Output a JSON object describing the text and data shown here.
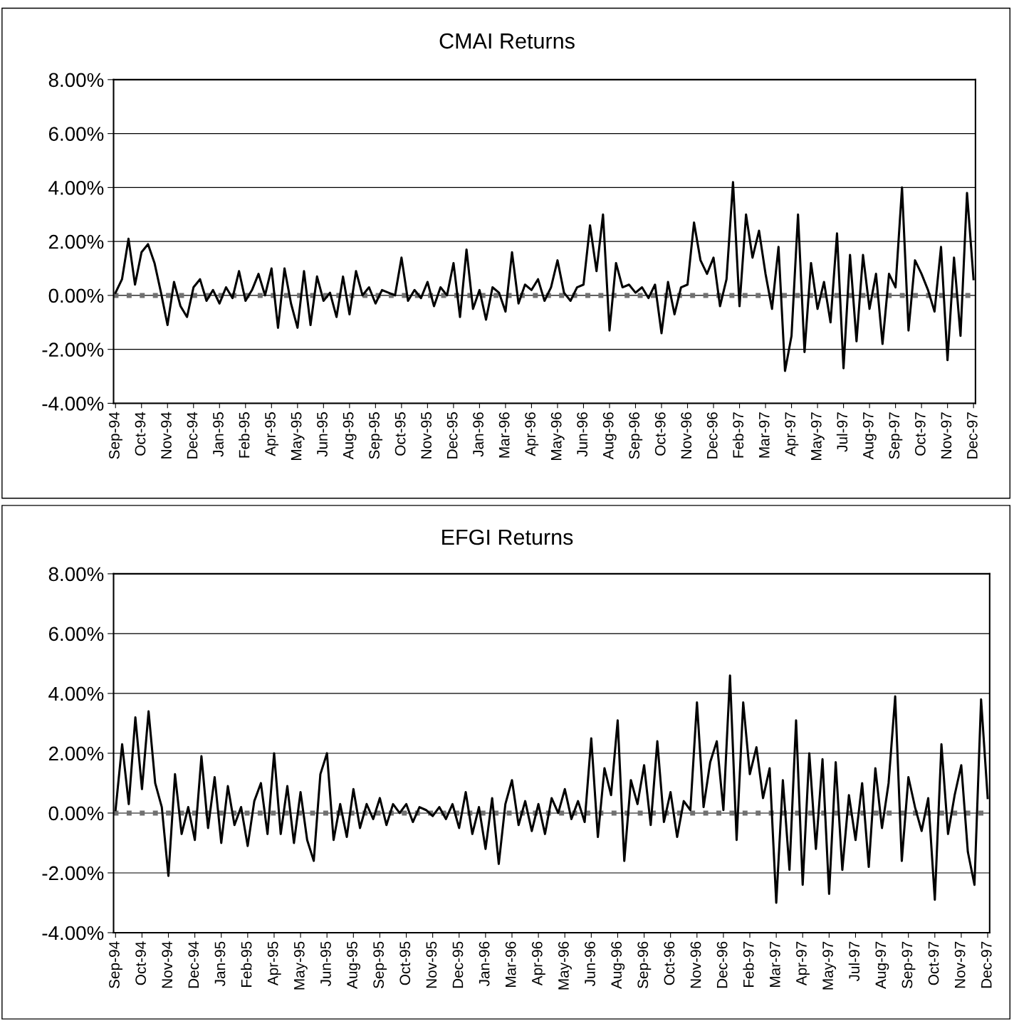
{
  "chart_data": [
    {
      "type": "line",
      "title": "CMAI Returns",
      "grid": "y",
      "categories": [
        "Sep-94",
        null,
        null,
        null,
        "Oct-94",
        null,
        null,
        null,
        "Nov-94",
        null,
        null,
        null,
        "Dec-94",
        null,
        null,
        null,
        "Jan-95",
        null,
        null,
        null,
        "Feb-95",
        null,
        null,
        null,
        "Apr-95",
        null,
        null,
        null,
        "May-95",
        null,
        null,
        null,
        "Jun-95",
        null,
        null,
        null,
        "Aug-95",
        null,
        null,
        null,
        "Sep-95",
        null,
        null,
        null,
        "Oct-95",
        null,
        null,
        null,
        "Nov-95",
        null,
        null,
        null,
        "Dec-95",
        null,
        null,
        null,
        "Jan-96",
        null,
        null,
        null,
        "Mar-96",
        null,
        null,
        null,
        "Apr-96",
        null,
        null,
        null,
        "May-96",
        null,
        null,
        null,
        "Jun-96",
        null,
        null,
        null,
        "Aug-96",
        null,
        null,
        null,
        "Sep-96",
        null,
        null,
        null,
        "Oct-96",
        null,
        null,
        null,
        "Nov-96",
        null,
        null,
        null,
        "Dec-96",
        null,
        null,
        null,
        "Feb-97",
        null,
        null,
        null,
        "Mar-97",
        null,
        null,
        null,
        "Apr-97",
        null,
        null,
        null,
        "May-97",
        null,
        null,
        null,
        "Jul-97",
        null,
        null,
        null,
        "Aug-97",
        null,
        null,
        null,
        "Sep-97",
        null,
        null,
        null,
        "Oct-97",
        null,
        null,
        null,
        "Nov-97",
        null,
        null,
        null,
        "Dec-97"
      ],
      "series": [
        {
          "color": "#000000",
          "values": [
            0.1,
            0.6,
            2.1,
            0.4,
            1.6,
            1.9,
            1.2,
            0.1,
            -1.1,
            0.5,
            -0.4,
            -0.8,
            0.3,
            0.6,
            -0.2,
            0.2,
            -0.3,
            0.3,
            -0.1,
            0.9,
            -0.2,
            0.2,
            0.8,
            0.0,
            1.0,
            -1.2,
            1.0,
            -0.3,
            -1.2,
            0.9,
            -1.1,
            0.7,
            -0.2,
            0.1,
            -0.8,
            0.7,
            -0.7,
            0.9,
            0.0,
            0.3,
            -0.3,
            0.2,
            0.1,
            0.0,
            1.4,
            -0.2,
            0.2,
            -0.1,
            0.5,
            -0.4,
            0.3,
            0.0,
            1.2,
            -0.8,
            1.7,
            -0.5,
            0.2,
            -0.9,
            0.3,
            0.1,
            -0.6,
            1.6,
            -0.3,
            0.4,
            0.2,
            0.6,
            -0.2,
            0.3,
            1.3,
            0.1,
            -0.2,
            0.3,
            0.4,
            2.6,
            0.9,
            3.0,
            -1.3,
            1.2,
            0.3,
            0.4,
            0.1,
            0.3,
            -0.1,
            0.4,
            -1.4,
            0.5,
            -0.7,
            0.3,
            0.4,
            2.7,
            1.3,
            0.8,
            1.4,
            -0.4,
            0.6,
            4.2,
            -0.4,
            3.0,
            1.4,
            2.4,
            0.8,
            -0.5,
            1.8,
            -2.8,
            -1.5,
            3.0,
            -2.1,
            1.2,
            -0.5,
            0.5,
            -1.0,
            2.3,
            -2.7,
            1.5,
            -1.7,
            1.5,
            -0.5,
            0.8,
            -1.8,
            0.8,
            0.3,
            4.0,
            -1.3,
            1.3,
            0.8,
            0.2,
            -0.6,
            1.8,
            -2.4,
            1.4,
            -1.5,
            3.8,
            0.6
          ]
        }
      ],
      "ylim": [
        -4,
        8
      ],
      "yticks": [
        {
          "value": -4,
          "label": "-4.00%"
        },
        {
          "value": -2,
          "label": "-2.00%"
        },
        {
          "value": 0,
          "label": "0.00%"
        },
        {
          "value": 2,
          "label": "2.00%"
        },
        {
          "value": 4,
          "label": "4.00%"
        },
        {
          "value": 6,
          "label": "6.00%"
        },
        {
          "value": 8,
          "label": "8.00%"
        }
      ],
      "ref_lines": [
        {
          "axis": "y",
          "value": 0,
          "color": "#707070",
          "line_style": "dotted"
        }
      ]
    },
    {
      "type": "line",
      "title": "EFGI Returns",
      "grid": "y",
      "categories": [
        "Sep-94",
        null,
        null,
        null,
        "Oct-94",
        null,
        null,
        null,
        "Nov-94",
        null,
        null,
        null,
        "Dec-94",
        null,
        null,
        null,
        "Jan-95",
        null,
        null,
        null,
        "Feb-95",
        null,
        null,
        null,
        "Apr-95",
        null,
        null,
        null,
        "May-95",
        null,
        null,
        null,
        "Jun-95",
        null,
        null,
        null,
        "Aug-95",
        null,
        null,
        null,
        "Sep-95",
        null,
        null,
        null,
        "Oct-95",
        null,
        null,
        null,
        "Nov-95",
        null,
        null,
        null,
        "Dec-95",
        null,
        null,
        null,
        "Jan-96",
        null,
        null,
        null,
        "Mar-96",
        null,
        null,
        null,
        "Apr-96",
        null,
        null,
        null,
        "May-96",
        null,
        null,
        null,
        "Jun-96",
        null,
        null,
        null,
        "Aug-96",
        null,
        null,
        null,
        "Sep-96",
        null,
        null,
        null,
        "Oct-96",
        null,
        null,
        null,
        "Nov-96",
        null,
        null,
        null,
        "Dec-96",
        null,
        null,
        null,
        "Feb-97",
        null,
        null,
        null,
        "Mar-97",
        null,
        null,
        null,
        "Apr-97",
        null,
        null,
        null,
        "May-97",
        null,
        null,
        null,
        "Jul-97",
        null,
        null,
        null,
        "Aug-97",
        null,
        null,
        null,
        "Sep-97",
        null,
        null,
        null,
        "Oct-97",
        null,
        null,
        null,
        "Nov-97",
        null,
        null,
        null,
        "Dec-97"
      ],
      "series": [
        {
          "color": "#000000",
          "values": [
            0.1,
            2.3,
            0.3,
            3.2,
            0.8,
            3.4,
            1.0,
            0.2,
            -2.1,
            1.3,
            -0.7,
            0.2,
            -0.9,
            1.9,
            -0.5,
            1.2,
            -1.0,
            0.9,
            -0.4,
            0.2,
            -1.1,
            0.4,
            1.0,
            -0.7,
            2.0,
            -0.7,
            0.9,
            -1.0,
            0.7,
            -0.9,
            -1.6,
            1.3,
            2.0,
            -0.9,
            0.3,
            -0.8,
            0.8,
            -0.5,
            0.3,
            -0.2,
            0.5,
            -0.4,
            0.3,
            0.0,
            0.3,
            -0.3,
            0.2,
            0.1,
            -0.1,
            0.2,
            -0.2,
            0.3,
            -0.5,
            0.7,
            -0.7,
            0.2,
            -1.2,
            0.5,
            -1.7,
            0.3,
            1.1,
            -0.4,
            0.4,
            -0.6,
            0.3,
            -0.7,
            0.5,
            0.0,
            0.8,
            -0.2,
            0.4,
            -0.3,
            2.5,
            -0.8,
            1.5,
            0.6,
            3.1,
            -1.6,
            1.1,
            0.3,
            1.6,
            -0.4,
            2.4,
            -0.3,
            0.7,
            -0.8,
            0.4,
            0.1,
            3.7,
            0.2,
            1.7,
            2.4,
            0.1,
            4.6,
            -0.9,
            3.7,
            1.3,
            2.2,
            0.5,
            1.5,
            -3.0,
            1.1,
            -1.9,
            3.1,
            -2.4,
            2.0,
            -1.2,
            1.8,
            -2.7,
            1.7,
            -1.9,
            0.6,
            -0.9,
            1.0,
            -1.8,
            1.5,
            -0.5,
            1.0,
            3.9,
            -1.6,
            1.2,
            0.2,
            -0.6,
            0.5,
            -2.9,
            2.3,
            -0.7,
            0.6,
            1.6,
            -1.3,
            -2.4,
            3.8,
            0.5
          ]
        }
      ],
      "ylim": [
        -4,
        8
      ],
      "yticks": [
        {
          "value": -4,
          "label": "-4.00%"
        },
        {
          "value": -2,
          "label": "-2.00%"
        },
        {
          "value": 0,
          "label": "0.00%"
        },
        {
          "value": 2,
          "label": "2.00%"
        },
        {
          "value": 4,
          "label": "4.00%"
        },
        {
          "value": 6,
          "label": "6.00%"
        },
        {
          "value": 8,
          "label": "8.00%"
        }
      ],
      "ref_lines": [
        {
          "axis": "y",
          "value": 0,
          "color": "#707070",
          "line_style": "dotted"
        }
      ]
    }
  ]
}
